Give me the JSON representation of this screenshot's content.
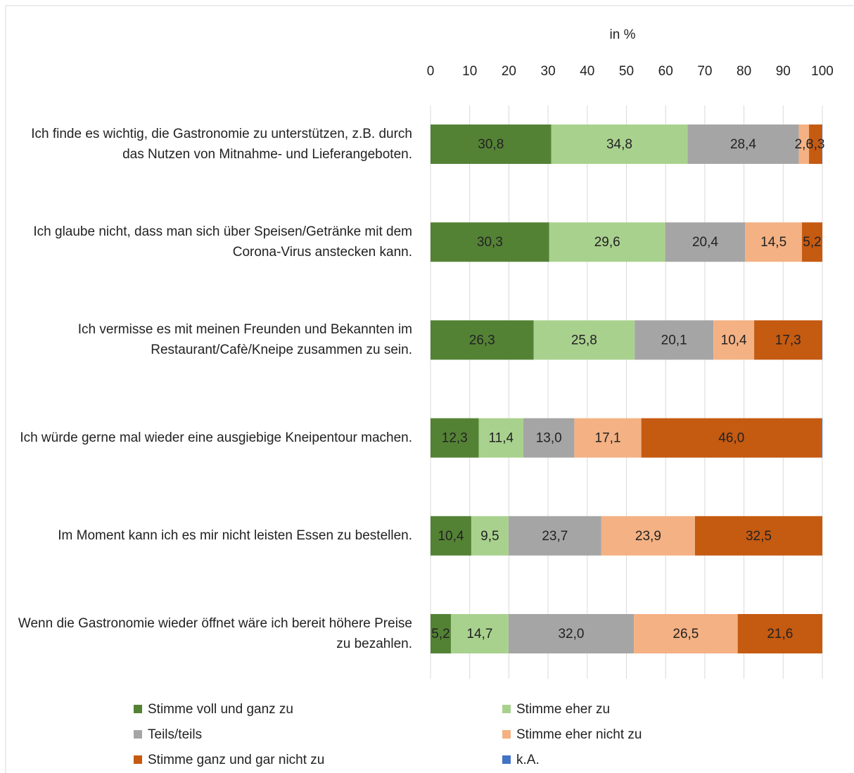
{
  "chart_data": {
    "type": "stacked_bar_horizontal",
    "axis_label": "in %",
    "categories": [
      "Ich finde es wichtig, die Gastronomie zu unterstützen, z.B. durch das Nutzen von Mitnahme- und Lieferangeboten.",
      "Ich glaube nicht, dass man sich über Speisen/Getränke mit dem Corona-Virus anstecken kann.",
      "Ich vermisse es mit meinen Freunden und Bekannten im Restaurant/Cafè/Kneipe zusammen zu sein.",
      "Ich würde gerne mal wieder eine ausgiebige Kneipentour machen.",
      "Im Moment kann ich es mir nicht leisten Essen zu bestellen.",
      "Wenn die Gastronomie wieder öffnet wäre ich bereit höhere Preise zu bezahlen."
    ],
    "series": [
      {
        "name": "Stimme voll und ganz zu",
        "color": "#548235",
        "values": [
          30.8,
          30.3,
          26.3,
          12.3,
          10.4,
          5.2
        ],
        "value_labels": [
          "30,8",
          "30,3",
          "26,3",
          "12,3",
          "10,4",
          "5,2"
        ]
      },
      {
        "name": "Stimme eher zu",
        "color": "#a9d18e",
        "values": [
          34.8,
          29.6,
          25.8,
          11.4,
          9.5,
          14.7
        ],
        "value_labels": [
          "34,8",
          "29,6",
          "25,8",
          "11,4",
          "9,5",
          "14,7"
        ]
      },
      {
        "name": "Teils/teils",
        "color": "#a5a5a5",
        "values": [
          28.4,
          20.4,
          20.1,
          13.0,
          23.7,
          32.0
        ],
        "value_labels": [
          "28,4",
          "20,4",
          "20,1",
          "13,0",
          "23,7",
          "32,0"
        ]
      },
      {
        "name": "Stimme eher nicht zu",
        "color": "#f4b183",
        "values": [
          2.6,
          14.5,
          10.4,
          17.1,
          23.9,
          26.5
        ],
        "value_labels": [
          "2,6",
          "14,5",
          "10,4",
          "17,1",
          "23,9",
          "26,5"
        ]
      },
      {
        "name": "Stimme ganz und gar nicht zu",
        "color": "#c55a11",
        "values": [
          3.3,
          5.2,
          17.3,
          46.0,
          32.5,
          21.6
        ],
        "value_labels": [
          "3,3",
          "5,2",
          "17,3",
          "46,0",
          "32,5",
          "21,6"
        ]
      },
      {
        "name": "k.A.",
        "color": "#4472c4",
        "values": [
          0.1,
          0,
          0.1,
          0.2,
          0,
          0
        ],
        "value_labels": [
          null,
          null,
          null,
          null,
          null,
          null
        ]
      }
    ],
    "xlim": [
      0,
      100
    ],
    "xticks": [
      0,
      10,
      20,
      30,
      40,
      50,
      60,
      70,
      80,
      90,
      100
    ],
    "grid": true,
    "legend": "bottom"
  }
}
